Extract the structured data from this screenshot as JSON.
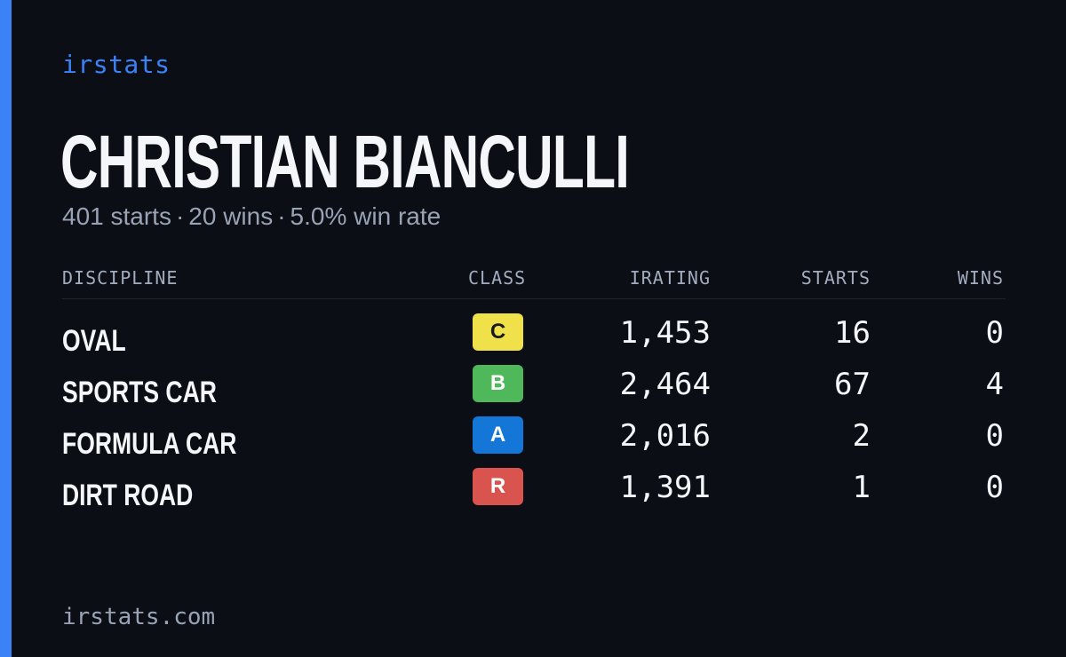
{
  "brand": "irstats",
  "player": {
    "name": "CHRISTIAN BIANCULLI",
    "starts_text": "401 starts",
    "wins_text": "20 wins",
    "winrate_text": "5.0% win rate",
    "separator": "·"
  },
  "table": {
    "headers": {
      "discipline": "DISCIPLINE",
      "class": "CLASS",
      "irating": "IRATING",
      "starts": "STARTS",
      "wins": "WINS"
    },
    "rows": [
      {
        "discipline": "OVAL",
        "class": "C",
        "class_bg": "#f0e04a",
        "class_fg": "#1a1a1a",
        "irating": "1,453",
        "starts": "16",
        "wins": "0"
      },
      {
        "discipline": "SPORTS CAR",
        "class": "B",
        "class_bg": "#4fb85a",
        "class_fg": "#ffffff",
        "irating": "2,464",
        "starts": "67",
        "wins": "4"
      },
      {
        "discipline": "FORMULA CAR",
        "class": "A",
        "class_bg": "#1476d6",
        "class_fg": "#ffffff",
        "irating": "2,016",
        "starts": "2",
        "wins": "0"
      },
      {
        "discipline": "DIRT ROAD",
        "class": "R",
        "class_bg": "#d9534f",
        "class_fg": "#ffffff",
        "irating": "1,391",
        "starts": "1",
        "wins": "0"
      }
    ]
  },
  "footer": "irstats.com",
  "colors": {
    "accent": "#3b82f6",
    "background": "#0b0e15"
  }
}
